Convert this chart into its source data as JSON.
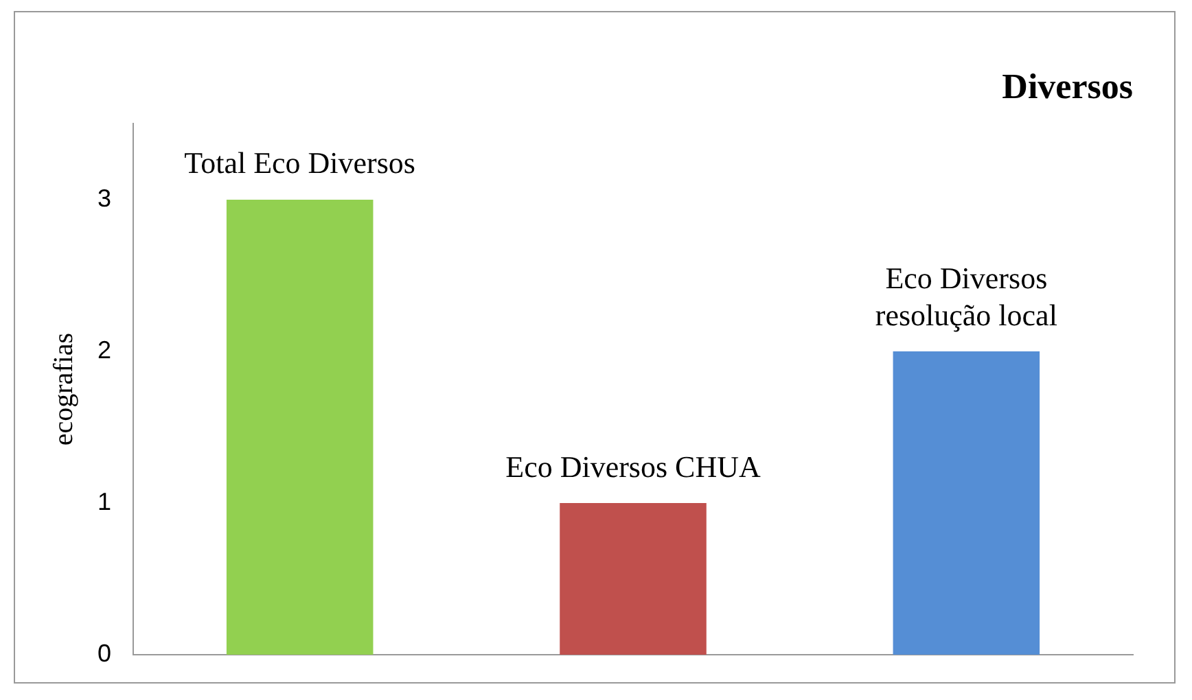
{
  "chart_data": {
    "type": "bar",
    "title": "Diversos",
    "ylabel": "ecografias",
    "categories": [
      "Total Eco Diversos",
      "Eco Diversos CHUA",
      "Eco Diversos resolução local"
    ],
    "values": [
      3,
      1,
      2
    ],
    "colors": [
      "#92d050",
      "#c0504d",
      "#558ed5"
    ],
    "ylim": [
      0,
      3.5
    ],
    "yticks": [
      0,
      1,
      2,
      3
    ],
    "grid": false,
    "legend": false,
    "tick_labels": "y"
  }
}
